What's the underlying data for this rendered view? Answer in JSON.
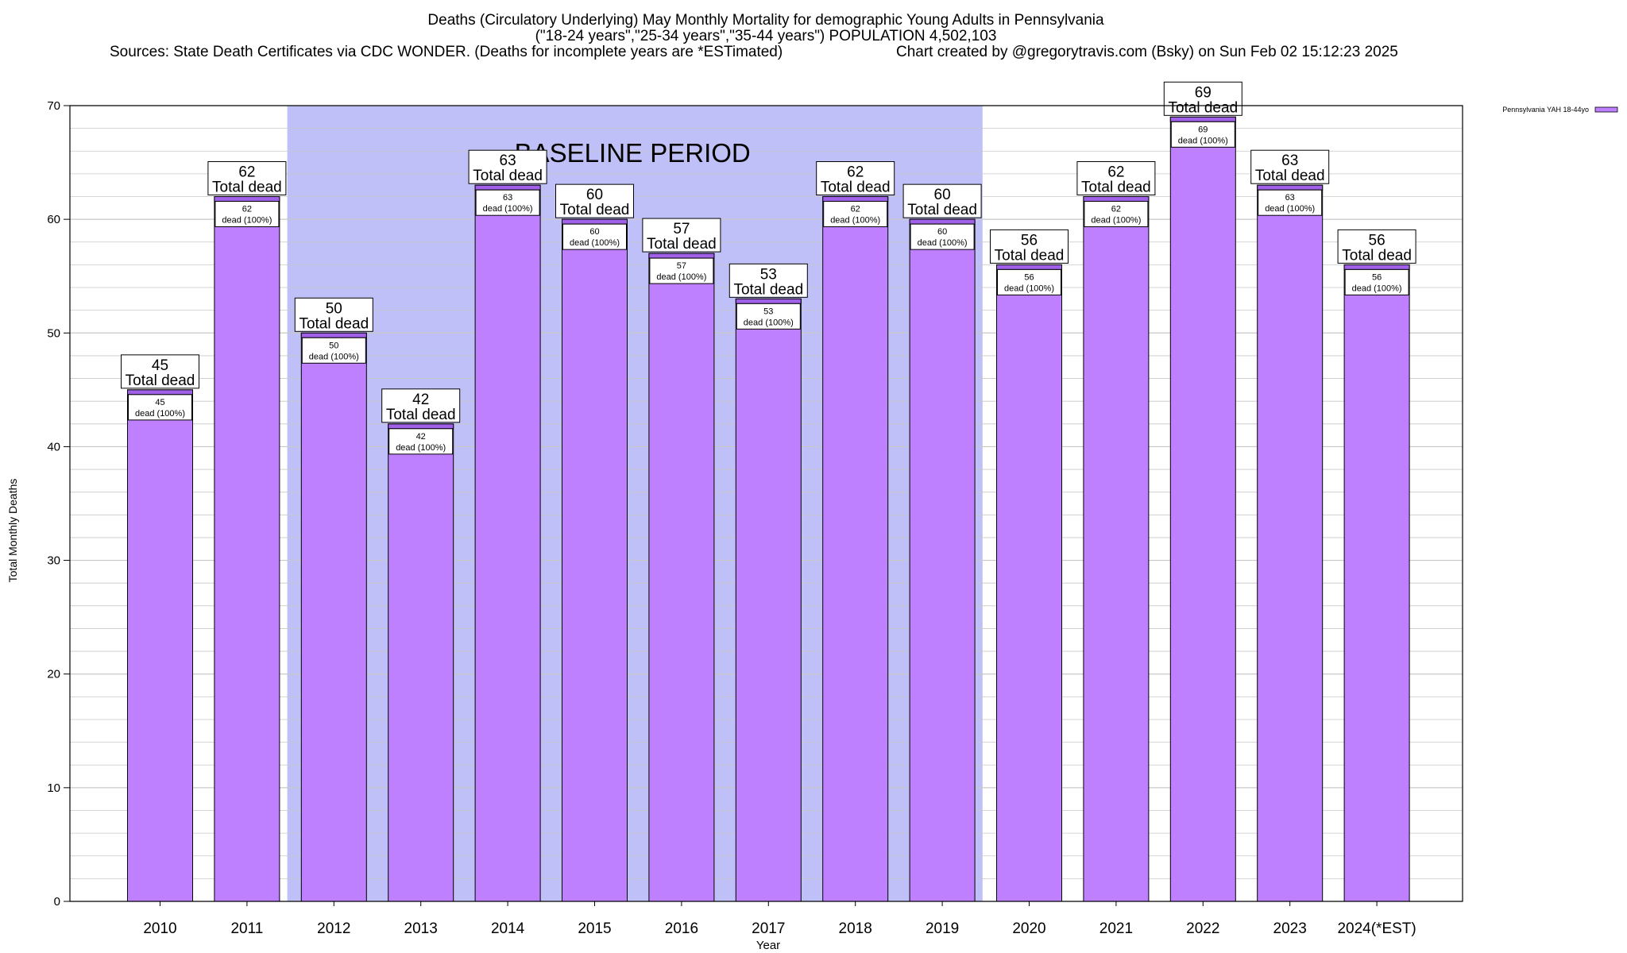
{
  "chart_data": {
    "type": "bar",
    "title_lines": [
      "Deaths (Circulatory Underlying) May Monthly Mortality for demographic Young Adults in Pennsylvania",
      "(\"18-24 years\",\"25-34 years\",\"35-44 years\") POPULATION 4,502,103"
    ],
    "sources": "Sources: State Death Certificates via CDC WONDER. (Deaths for incomplete years are *ESTimated)",
    "credit": "Chart created by @gregorytravis.com (Bsky) on Sun Feb 02 15:12:23 2025",
    "xlabel": "Year",
    "ylabel": "Total Monthly Deaths",
    "ylim": [
      0,
      70
    ],
    "yticks": [
      0,
      10,
      20,
      30,
      40,
      50,
      60,
      70
    ],
    "categories": [
      "2010",
      "2011",
      "2012",
      "2013",
      "2014",
      "2015",
      "2016",
      "2017",
      "2018",
      "2019",
      "2020",
      "2021",
      "2022",
      "2023",
      "2024(*EST)"
    ],
    "series": [
      {
        "name": "Pennsylvania YAH 18-44yo",
        "values": [
          45,
          62,
          50,
          42,
          63,
          60,
          57,
          53,
          62,
          60,
          56,
          62,
          69,
          63,
          56
        ]
      }
    ],
    "total_label_suffix": "Total dead",
    "inner_label_suffix": "dead (100%)",
    "baseline": {
      "label": "BASELINE PERIOD",
      "from_year": "2012",
      "to_year": "2019"
    },
    "legend_position": "top-right",
    "colors": {
      "bar": "#bf80ff",
      "bar_cap": "#a060e8",
      "baseline": "#c0c0f8",
      "grid": "#c8c8c8"
    }
  }
}
